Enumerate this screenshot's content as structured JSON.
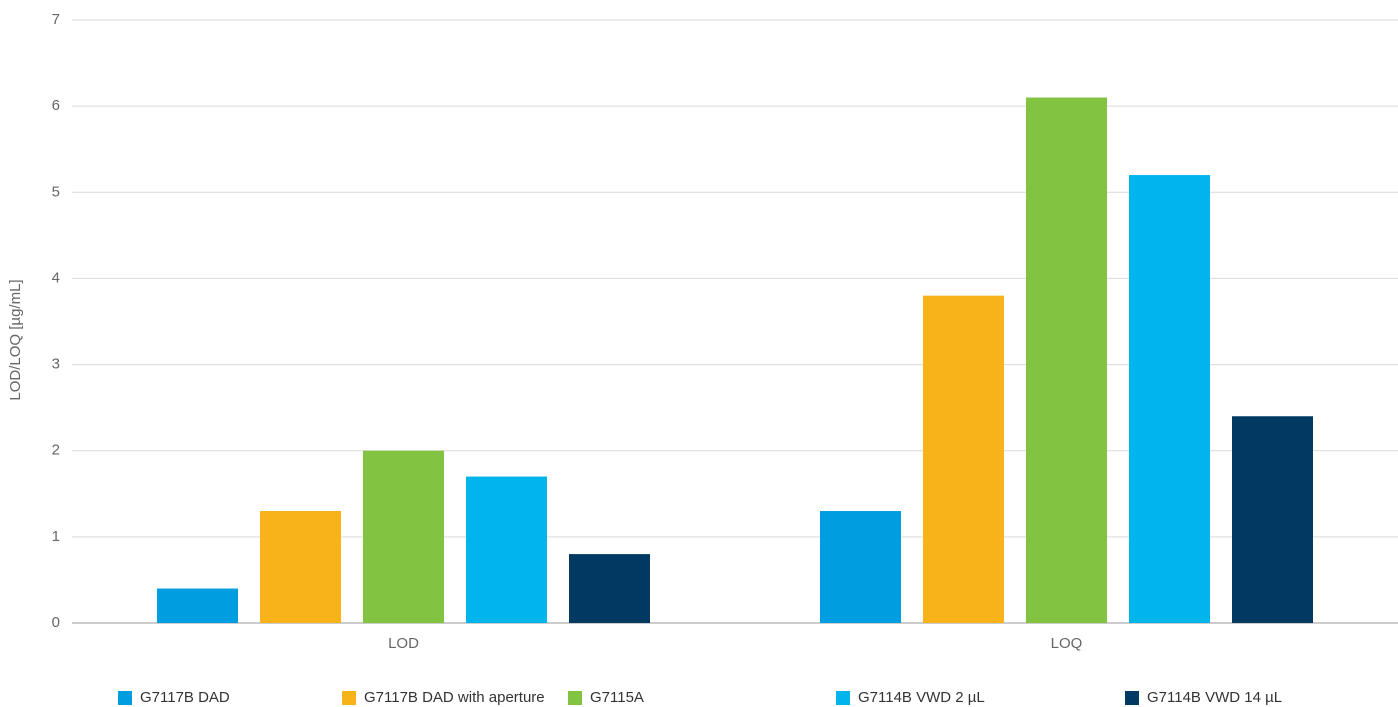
{
  "chart_data": {
    "type": "bar",
    "y_label": "LOD/LOQ [µg/mL]",
    "categories": [
      "LOD",
      "LOQ"
    ],
    "series": [
      {
        "name": "G7117B DAD",
        "color": "#009ee0",
        "values": [
          0.4,
          1.3
        ]
      },
      {
        "name": "G7117B DAD with aperture",
        "color": "#f8b21a",
        "values": [
          1.3,
          3.8
        ]
      },
      {
        "name": "G7115A",
        "color": "#82c341",
        "values": [
          2.0,
          6.1
        ]
      },
      {
        "name": "G7114B VWD 2 µL",
        "color": "#00b5eb",
        "values": [
          1.7,
          5.2
        ]
      },
      {
        "name": "G7114B VWD 14 µL",
        "color": "#003a63",
        "values": [
          0.8,
          2.4
        ]
      }
    ],
    "ylim": [
      0,
      7
    ],
    "yticks": [
      0,
      1,
      2,
      3,
      4,
      5,
      6,
      7
    ],
    "grid": true,
    "legend": "bottom"
  }
}
